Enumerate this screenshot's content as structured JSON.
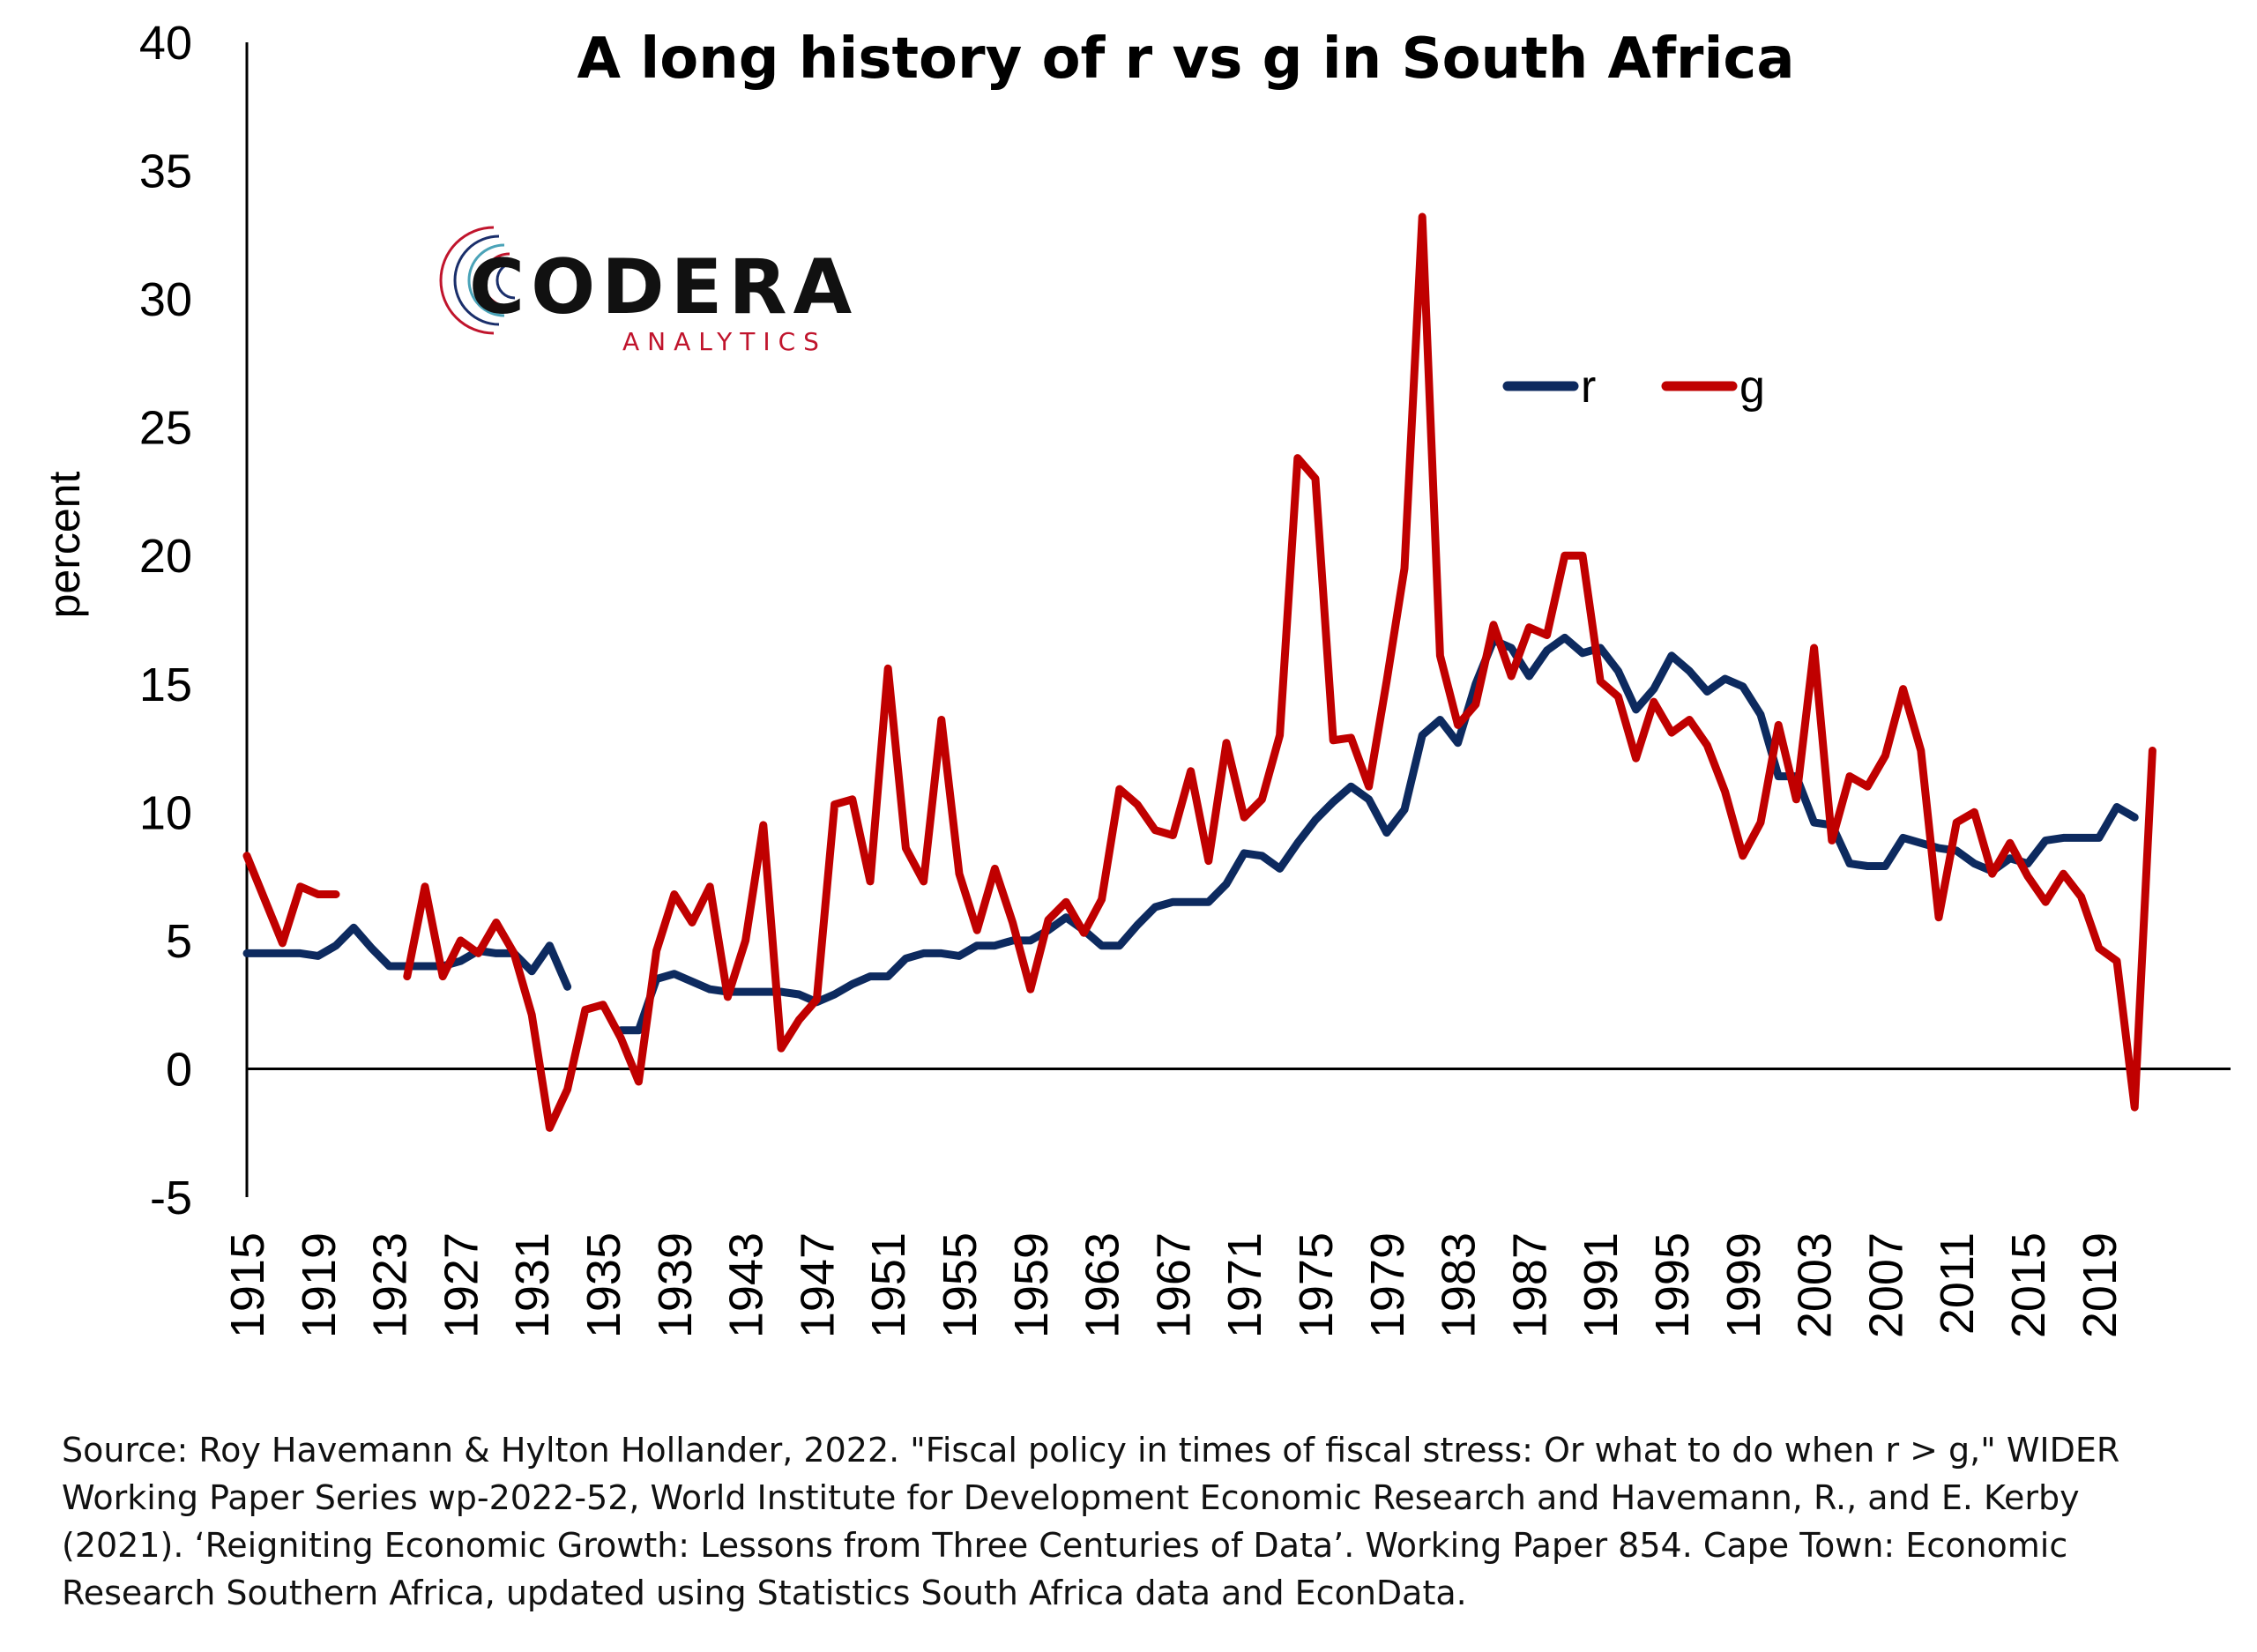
{
  "chart_data": {
    "type": "line",
    "title": "A long history of r vs g in South Africa",
    "ylabel": "percent",
    "xlabel": "",
    "ylim": [
      -5,
      40
    ],
    "yticks": [
      -5,
      0,
      5,
      10,
      15,
      20,
      25,
      30,
      35,
      40
    ],
    "xlim": [
      1915,
      2021
    ],
    "xticks": [
      1915,
      1919,
      1923,
      1927,
      1931,
      1935,
      1939,
      1943,
      1947,
      1951,
      1955,
      1959,
      1963,
      1967,
      1971,
      1975,
      1979,
      1983,
      1987,
      1991,
      1995,
      1999,
      2003,
      2007,
      2011,
      2015,
      2019
    ],
    "legend_position": "top-right",
    "grid": false,
    "series": [
      {
        "name": "r",
        "color": "#0d2a5f",
        "points": [
          [
            1915,
            4.5
          ],
          [
            1916,
            4.5
          ],
          [
            1917,
            4.5
          ],
          [
            1918,
            4.5
          ],
          [
            1919,
            4.4
          ],
          [
            1920,
            4.8
          ],
          [
            1921,
            5.5
          ],
          [
            1922,
            4.7
          ],
          [
            1923,
            4.0
          ],
          [
            1924,
            4.0
          ],
          [
            1925,
            4.0
          ],
          [
            1926,
            4.0
          ],
          [
            1927,
            4.2
          ],
          [
            1928,
            4.6
          ],
          [
            1929,
            4.5
          ],
          [
            1930,
            4.5
          ],
          [
            1931,
            3.8
          ],
          [
            1932,
            4.8
          ],
          [
            1933,
            3.2
          ],
          null,
          [
            1936,
            1.5
          ],
          [
            1937,
            1.5
          ],
          [
            1938,
            3.5
          ],
          [
            1939,
            3.7
          ],
          [
            1940,
            3.4
          ],
          [
            1941,
            3.1
          ],
          [
            1942,
            3.0
          ],
          [
            1943,
            3.0
          ],
          [
            1944,
            3.0
          ],
          [
            1945,
            3.0
          ],
          [
            1946,
            2.9
          ],
          [
            1947,
            2.6
          ],
          [
            1948,
            2.9
          ],
          [
            1949,
            3.3
          ],
          [
            1950,
            3.6
          ],
          [
            1951,
            3.6
          ],
          [
            1952,
            4.3
          ],
          [
            1953,
            4.5
          ],
          [
            1954,
            4.5
          ],
          [
            1955,
            4.4
          ],
          [
            1956,
            4.8
          ],
          [
            1957,
            4.8
          ],
          [
            1958,
            5.0
          ],
          [
            1959,
            5.0
          ],
          [
            1960,
            5.4
          ],
          [
            1961,
            5.9
          ],
          [
            1962,
            5.4
          ],
          [
            1963,
            4.8
          ],
          [
            1964,
            4.8
          ],
          [
            1965,
            5.6
          ],
          [
            1966,
            6.3
          ],
          [
            1967,
            6.5
          ],
          [
            1968,
            6.5
          ],
          [
            1969,
            6.5
          ],
          [
            1970,
            7.2
          ],
          [
            1971,
            8.4
          ],
          [
            1972,
            8.3
          ],
          [
            1973,
            7.8
          ],
          [
            1974,
            8.8
          ],
          [
            1975,
            9.7
          ],
          [
            1976,
            10.4
          ],
          [
            1977,
            11.0
          ],
          [
            1978,
            10.5
          ],
          [
            1979,
            9.2
          ],
          [
            1980,
            10.1
          ],
          [
            1981,
            13.0
          ],
          [
            1982,
            13.6
          ],
          [
            1983,
            12.7
          ],
          [
            1984,
            15.0
          ],
          [
            1985,
            16.7
          ],
          [
            1986,
            16.4
          ],
          [
            1987,
            15.3
          ],
          [
            1988,
            16.3
          ],
          [
            1989,
            16.8
          ],
          [
            1990,
            16.2
          ],
          [
            1991,
            16.4
          ],
          [
            1992,
            15.5
          ],
          [
            1993,
            14.0
          ],
          [
            1994,
            14.8
          ],
          [
            1995,
            16.1
          ],
          [
            1996,
            15.5
          ],
          [
            1997,
            14.7
          ],
          [
            1998,
            15.2
          ],
          [
            1999,
            14.9
          ],
          [
            2000,
            13.8
          ],
          [
            2001,
            11.4
          ],
          [
            2002,
            11.4
          ],
          [
            2003,
            9.6
          ],
          [
            2004,
            9.5
          ],
          [
            2005,
            8.0
          ],
          [
            2006,
            7.9
          ],
          [
            2007,
            7.9
          ],
          [
            2008,
            9.0
          ],
          [
            2009,
            8.8
          ],
          [
            2010,
            8.6
          ],
          [
            2011,
            8.5
          ],
          [
            2012,
            8.0
          ],
          [
            2013,
            7.7
          ],
          [
            2014,
            8.2
          ],
          [
            2015,
            8.0
          ],
          [
            2016,
            8.9
          ],
          [
            2017,
            9.0
          ],
          [
            2018,
            9.0
          ],
          [
            2019,
            9.0
          ],
          [
            2020,
            10.2
          ],
          [
            2021,
            9.8
          ]
        ]
      },
      {
        "name": "g",
        "color": "#c00000",
        "points": [
          [
            1915,
            8.3
          ],
          [
            1916,
            6.6
          ],
          [
            1917,
            4.9
          ],
          [
            1918,
            7.1
          ],
          [
            1919,
            6.8
          ],
          [
            1920,
            6.8
          ],
          null,
          [
            1924,
            3.6
          ],
          [
            1925,
            7.1
          ],
          [
            1926,
            3.6
          ],
          [
            1927,
            5.0
          ],
          [
            1928,
            4.5
          ],
          [
            1929,
            5.7
          ],
          [
            1930,
            4.5
          ],
          [
            1931,
            2.1
          ],
          [
            1932,
            -2.3
          ],
          [
            1933,
            -0.8
          ],
          [
            1934,
            2.3
          ],
          [
            1935,
            2.5
          ],
          [
            1936,
            1.2
          ],
          [
            1937,
            -0.5
          ],
          [
            1938,
            4.6
          ],
          [
            1939,
            6.8
          ],
          [
            1940,
            5.7
          ],
          [
            1941,
            7.1
          ],
          [
            1942,
            2.8
          ],
          [
            1943,
            5.0
          ],
          [
            1944,
            9.5
          ],
          [
            1945,
            0.8
          ],
          [
            1946,
            1.9
          ],
          [
            1947,
            2.7
          ],
          [
            1948,
            10.3
          ],
          [
            1949,
            10.5
          ],
          [
            1950,
            7.3
          ],
          [
            1951,
            15.6
          ],
          [
            1952,
            8.6
          ],
          [
            1953,
            7.3
          ],
          [
            1954,
            13.6
          ],
          [
            1955,
            7.6
          ],
          [
            1956,
            5.4
          ],
          [
            1957,
            7.8
          ],
          [
            1958,
            5.7
          ],
          [
            1959,
            3.1
          ],
          [
            1960,
            5.8
          ],
          [
            1961,
            6.5
          ],
          [
            1962,
            5.3
          ],
          [
            1963,
            6.6
          ],
          [
            1964,
            10.9
          ],
          [
            1965,
            10.3
          ],
          [
            1966,
            9.3
          ],
          [
            1967,
            9.1
          ],
          [
            1968,
            11.6
          ],
          [
            1969,
            8.1
          ],
          [
            1970,
            12.7
          ],
          [
            1971,
            9.8
          ],
          [
            1972,
            10.5
          ],
          [
            1973,
            13.0
          ],
          [
            1974,
            23.8
          ],
          [
            1975,
            23.0
          ],
          [
            1976,
            12.8
          ],
          [
            1977,
            12.9
          ],
          [
            1978,
            11.0
          ],
          [
            1979,
            15.1
          ],
          [
            1980,
            19.5
          ],
          [
            1981,
            33.2
          ],
          [
            1982,
            16.1
          ],
          [
            1983,
            13.4
          ],
          [
            1984,
            14.2
          ],
          [
            1985,
            17.3
          ],
          [
            1986,
            15.3
          ],
          [
            1987,
            17.2
          ],
          [
            1988,
            16.9
          ],
          [
            1989,
            20.0
          ],
          [
            1990,
            20.0
          ],
          [
            1991,
            15.1
          ],
          [
            1992,
            14.5
          ],
          [
            1993,
            12.1
          ],
          [
            1994,
            14.3
          ],
          [
            1995,
            13.1
          ],
          [
            1996,
            13.6
          ],
          [
            1997,
            12.6
          ],
          [
            1998,
            10.8
          ],
          [
            1999,
            8.3
          ],
          [
            2000,
            9.6
          ],
          [
            2001,
            13.4
          ],
          [
            2002,
            10.5
          ],
          [
            2003,
            16.4
          ],
          [
            2004,
            8.9
          ],
          [
            2005,
            11.4
          ],
          [
            2006,
            11.0
          ],
          [
            2007,
            12.2
          ],
          [
            2008,
            14.8
          ],
          [
            2009,
            12.4
          ],
          [
            2010,
            5.9
          ],
          [
            2011,
            9.6
          ],
          [
            2012,
            10.0
          ],
          [
            2013,
            7.6
          ],
          [
            2014,
            8.8
          ],
          [
            2015,
            7.5
          ],
          [
            2016,
            6.5
          ],
          [
            2017,
            7.6
          ],
          [
            2018,
            6.7
          ],
          [
            2019,
            4.7
          ],
          [
            2020,
            4.2
          ],
          [
            2021,
            -1.5
          ],
          [
            2022,
            12.4
          ]
        ]
      }
    ]
  },
  "logo": {
    "name": "CODERA",
    "tagline": "ANALYTICS"
  },
  "source_note": "Source: Roy Havemann & Hylton Hollander, 2022. \"Fiscal policy in times of fiscal stress: Or what to do when r > g,\" WIDER Working Paper Series wp-2022-52, World Institute for Development Economic Research and Havemann, R., and E. Kerby (2021). ‘Reigniting Economic Growth: Lessons from Three Centuries of Data’. Working Paper 854. Cape Town: Economic Research Southern Africa, updated using Statistics South Africa data and EconData."
}
